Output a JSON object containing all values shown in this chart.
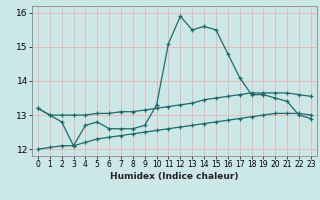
{
  "x": [
    0,
    1,
    2,
    3,
    4,
    5,
    6,
    7,
    8,
    9,
    10,
    11,
    12,
    13,
    14,
    15,
    16,
    17,
    18,
    19,
    20,
    21,
    22,
    23
  ],
  "line1": [
    13.2,
    13.0,
    12.8,
    12.1,
    12.7,
    12.8,
    12.6,
    12.6,
    12.6,
    12.7,
    13.3,
    15.1,
    15.9,
    15.5,
    15.6,
    15.5,
    14.8,
    14.1,
    13.6,
    13.6,
    13.5,
    13.4,
    13.0,
    12.9
  ],
  "line2": [
    13.2,
    13.0,
    13.0,
    13.0,
    13.0,
    13.05,
    13.05,
    13.1,
    13.1,
    13.15,
    13.2,
    13.25,
    13.3,
    13.35,
    13.45,
    13.5,
    13.55,
    13.6,
    13.65,
    13.65,
    13.65,
    13.65,
    13.6,
    13.55
  ],
  "line3": [
    12.0,
    12.05,
    12.1,
    12.1,
    12.2,
    12.3,
    12.35,
    12.4,
    12.45,
    12.5,
    12.55,
    12.6,
    12.65,
    12.7,
    12.75,
    12.8,
    12.85,
    12.9,
    12.95,
    13.0,
    13.05,
    13.05,
    13.05,
    13.0
  ],
  "color": "#1a6b6b",
  "bg_color": "#cce8e6",
  "grid_color": "#e8b8b8",
  "xlabel": "Humidex (Indice chaleur)",
  "ylim": [
    11.8,
    16.2
  ],
  "xlim": [
    -0.5,
    23.5
  ],
  "yticks": [
    12,
    13,
    14,
    15,
    16
  ],
  "xtick_labels": [
    "0",
    "1",
    "2",
    "3",
    "4",
    "5",
    "6",
    "7",
    "8",
    "9",
    "10",
    "11",
    "12",
    "13",
    "14",
    "15",
    "16",
    "17",
    "18",
    "19",
    "20",
    "21",
    "22",
    "23"
  ]
}
